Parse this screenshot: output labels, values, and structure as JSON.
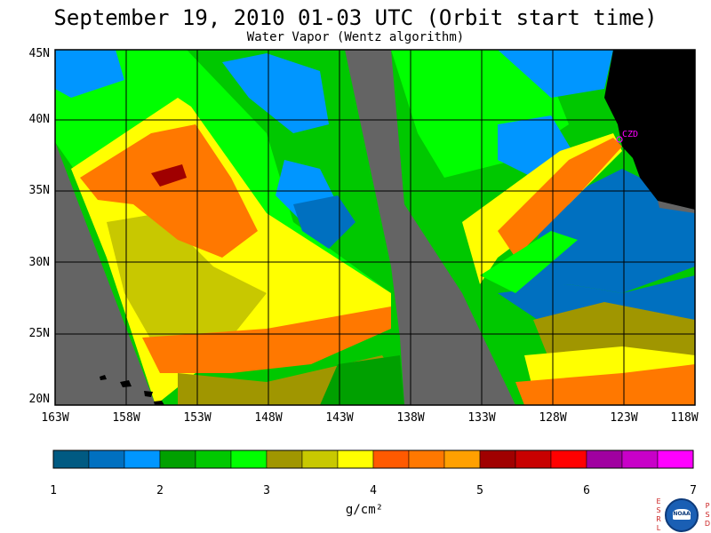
{
  "title": "September 19, 2010  01-03 UTC  (Orbit start time)",
  "subtitle": "Water Vapor (Wentz algorithm)",
  "map": {
    "lat_labels": [
      "45N",
      "40N",
      "35N",
      "30N",
      "25N",
      "20N"
    ],
    "lon_labels": [
      "163W",
      "158W",
      "153W",
      "148W",
      "143W",
      "138W",
      "133W",
      "128W",
      "123W",
      "118W"
    ],
    "station_label": "CZD",
    "land_color": "#000000",
    "no_data_color": "#646464"
  },
  "colorbar": {
    "tick_labels": [
      "1",
      "2",
      "3",
      "4",
      "5",
      "6",
      "7"
    ],
    "units": "g/cm²",
    "colors": [
      "#005a82",
      "#0070c0",
      "#0096ff",
      "#00a000",
      "#00c800",
      "#00ff00",
      "#a09600",
      "#c8c800",
      "#ffff00",
      "#ff5a00",
      "#ff7800",
      "#ffa000",
      "#a00000",
      "#c80000",
      "#ff0000",
      "#a000a0",
      "#c800c8",
      "#ff00ff"
    ]
  },
  "logo": {
    "left_text": "ESRL",
    "right_text": "PSD",
    "label": "NOAA"
  }
}
